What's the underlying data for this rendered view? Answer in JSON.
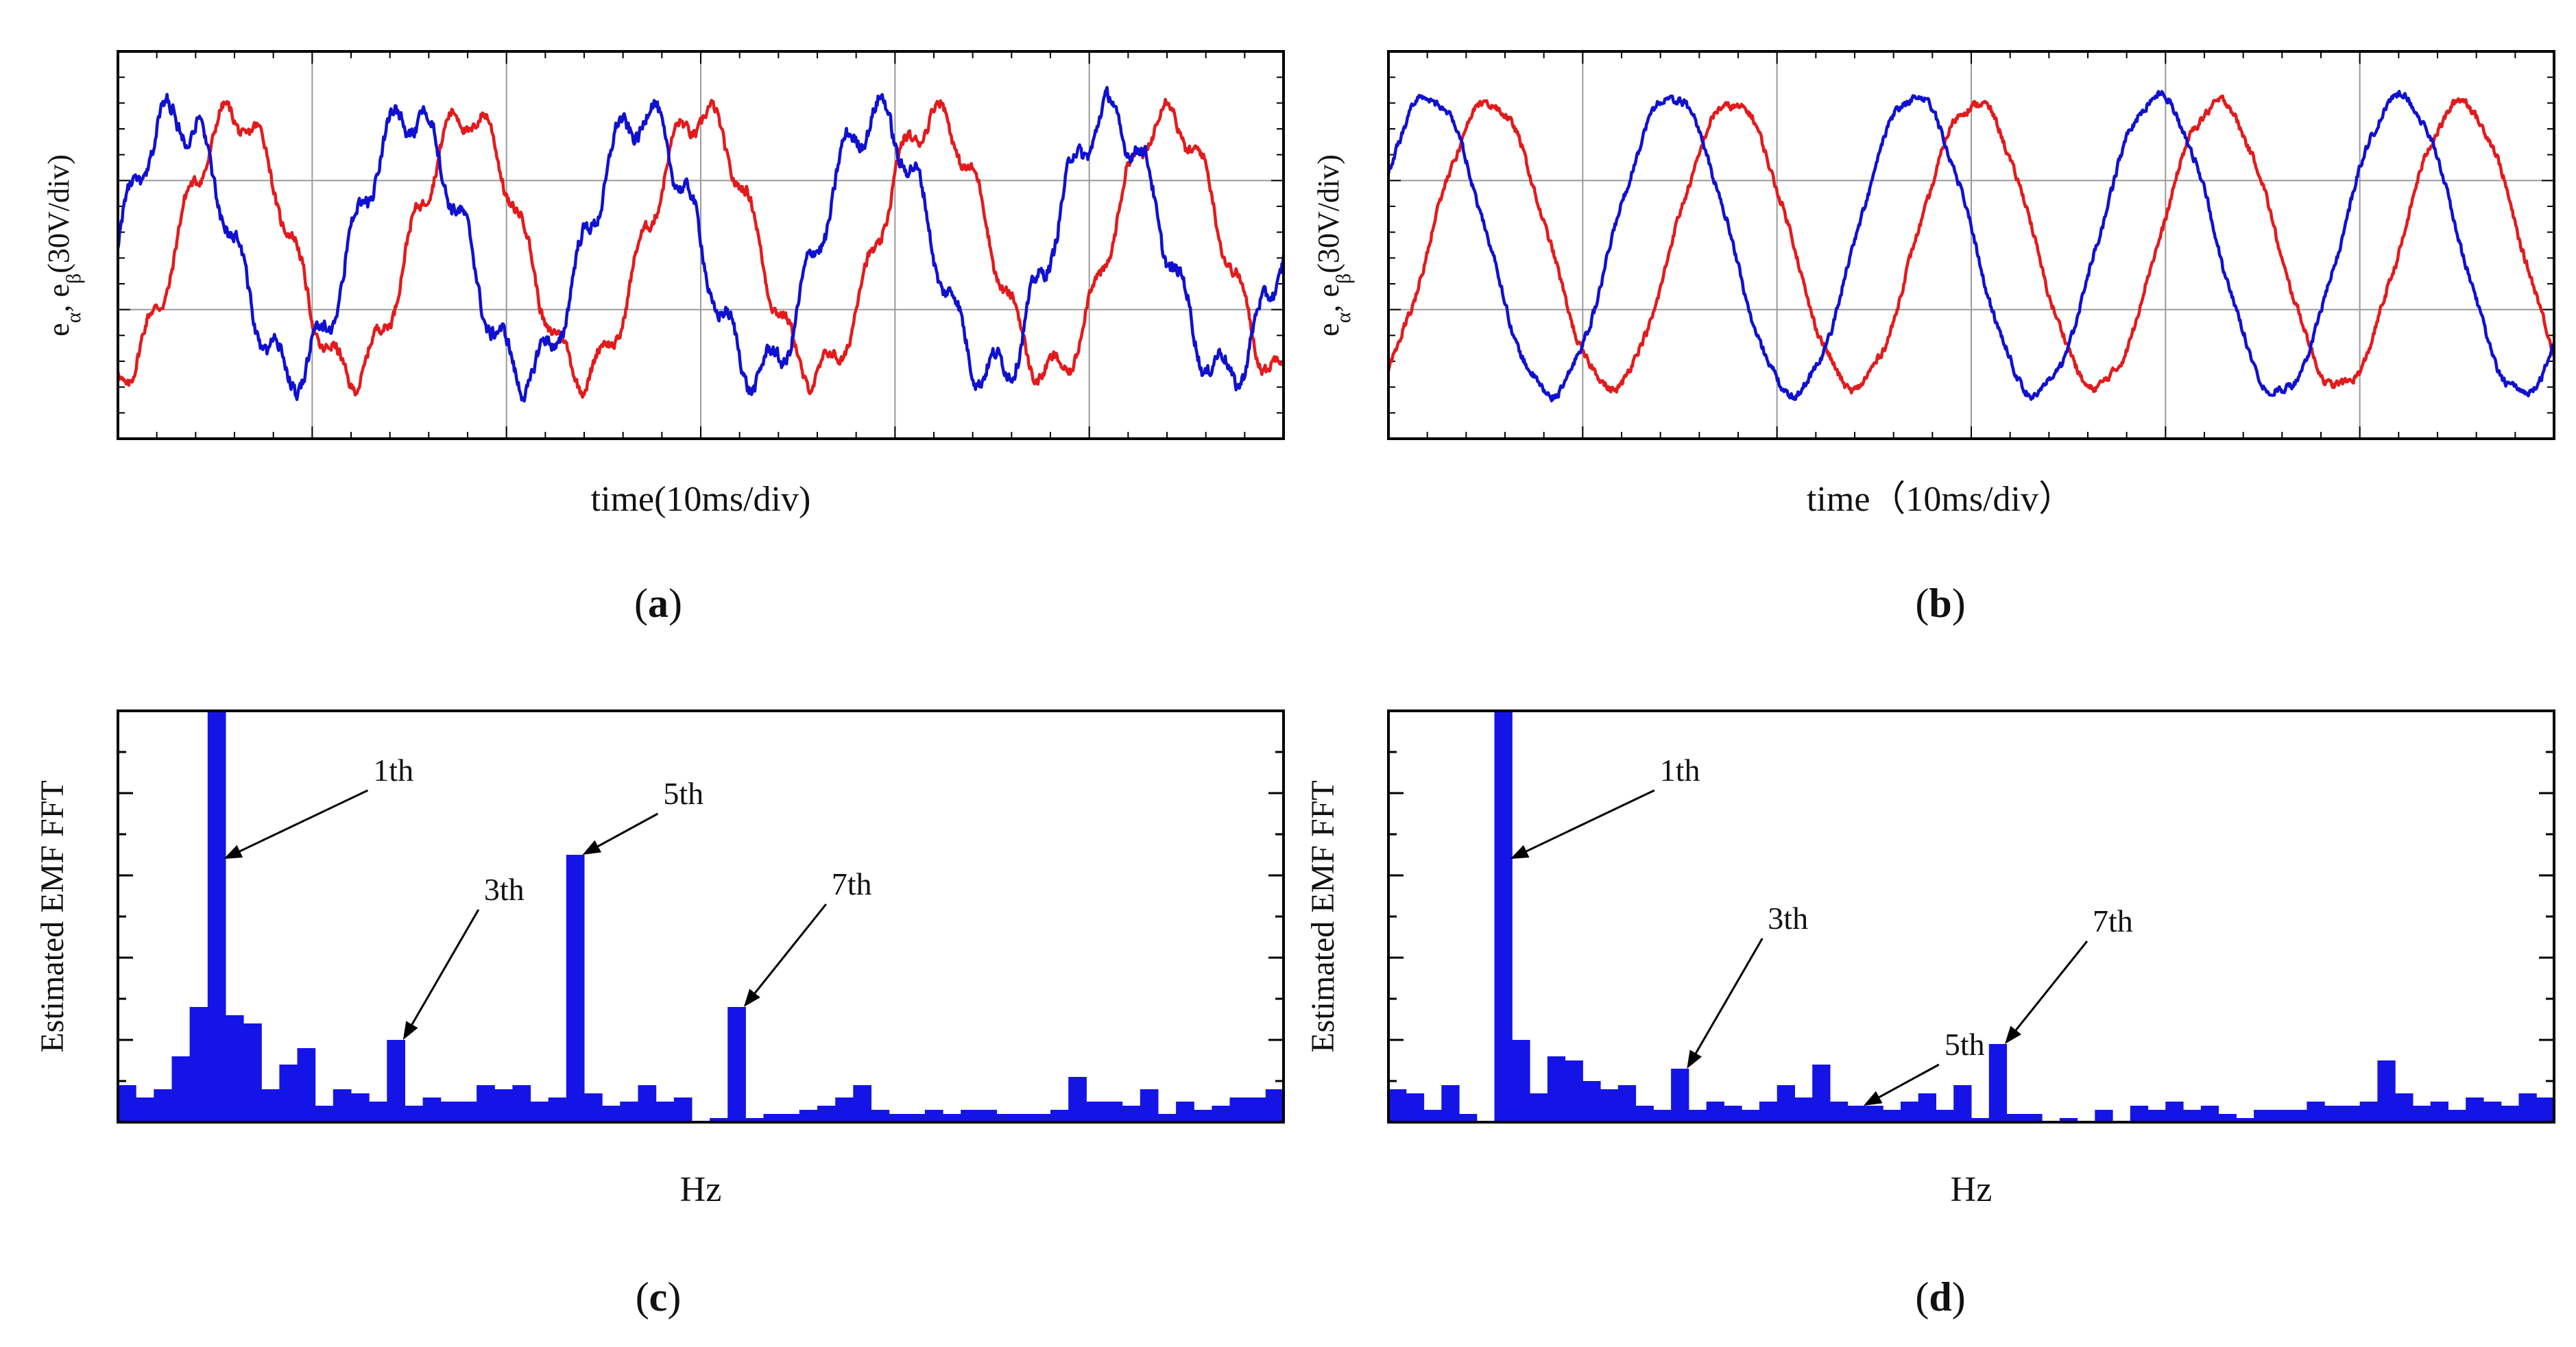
{
  "chart_data": [
    {
      "panel": "a",
      "type": "line",
      "title": "",
      "xlabel": "time(10ms/div)",
      "ylabel_parts": [
        "e",
        "α",
        ", e",
        "β",
        "(30V/div)"
      ],
      "caption": "a",
      "divisions": {
        "x": 6,
        "y": 3
      },
      "xlim": [
        0,
        6
      ],
      "ylim_div": [
        -1.5,
        1.5
      ],
      "grid": true,
      "series": [
        {
          "color": "#e31a1c",
          "amplitude_div": 1.0,
          "period_div": 1.2,
          "phase_deg": -90,
          "ripple_div": 0.13,
          "ripple_harmonic": 6,
          "noise_div": 0.07
        },
        {
          "color": "#1010d0",
          "amplitude_div": 1.0,
          "period_div": 1.2,
          "phase_deg": 0,
          "ripple_div": 0.16,
          "ripple_harmonic": 6,
          "noise_div": 0.09
        }
      ]
    },
    {
      "panel": "b",
      "type": "line",
      "title": "",
      "xlabel": "time（10ms/div）",
      "ylabel_parts": [
        "e",
        "α",
        ", e",
        "β",
        "(30V/div)"
      ],
      "caption": "b",
      "divisions": {
        "x": 6,
        "y": 3
      },
      "xlim": [
        0,
        6
      ],
      "ylim_div": [
        -1.5,
        1.5
      ],
      "grid": true,
      "series": [
        {
          "color": "#e31a1c",
          "amplitude_div": 1.1,
          "period_div": 1.25,
          "phase_deg": -60,
          "ripple_div": 0.03,
          "ripple_harmonic": 6,
          "noise_div": 0.05
        },
        {
          "color": "#1010d0",
          "amplitude_div": 1.15,
          "period_div": 1.25,
          "phase_deg": 30,
          "ripple_div": 0.03,
          "ripple_harmonic": 6,
          "noise_div": 0.05
        }
      ]
    },
    {
      "panel": "c",
      "type": "bar",
      "title": "",
      "xlabel": "Hz",
      "ylabel": "Estimated EMF FFT",
      "caption": "c",
      "ylim": [
        0,
        100
      ],
      "color": "#1414e6",
      "values": [
        9,
        6,
        8,
        16,
        28,
        100,
        26,
        24,
        8,
        14,
        18,
        4,
        8,
        7,
        5,
        20,
        4,
        6,
        5,
        5,
        9,
        8,
        9,
        5,
        6,
        65,
        7,
        4,
        5,
        9,
        5,
        6,
        0,
        1,
        28,
        1,
        2,
        2,
        3,
        4,
        6,
        9,
        3,
        2,
        2,
        3,
        2,
        3,
        3,
        2,
        2,
        2,
        3,
        11,
        5,
        5,
        4,
        8,
        2,
        5,
        3,
        4,
        6,
        6,
        8
      ],
      "annotations": [
        {
          "label": "1th",
          "bar": 5
        },
        {
          "label": "3th",
          "bar": 15
        },
        {
          "label": "5th",
          "bar": 25
        },
        {
          "label": "7th",
          "bar": 34
        }
      ]
    },
    {
      "panel": "d",
      "type": "bar",
      "title": "",
      "xlabel": "Hz",
      "ylabel": "Estimated EMF FFT",
      "caption": "d",
      "ylim": [
        0,
        100
      ],
      "color": "#1414e6",
      "values": [
        8,
        7,
        3,
        9,
        2,
        0,
        100,
        20,
        7,
        16,
        15,
        10,
        8,
        9,
        4,
        3,
        13,
        3,
        5,
        4,
        3,
        5,
        9,
        6,
        14,
        5,
        4,
        4,
        3,
        5,
        7,
        3,
        9,
        1,
        19,
        2,
        2,
        0,
        1,
        0,
        3,
        0,
        4,
        3,
        5,
        3,
        4,
        2,
        1,
        3,
        3,
        3,
        5,
        4,
        4,
        5,
        15,
        7,
        4,
        5,
        3,
        6,
        5,
        4,
        7,
        6
      ],
      "annotations": [
        {
          "label": "1th",
          "bar": 6
        },
        {
          "label": "3th",
          "bar": 16
        },
        {
          "label": "5th",
          "bar": 26
        },
        {
          "label": "7th",
          "bar": 34
        }
      ]
    }
  ]
}
